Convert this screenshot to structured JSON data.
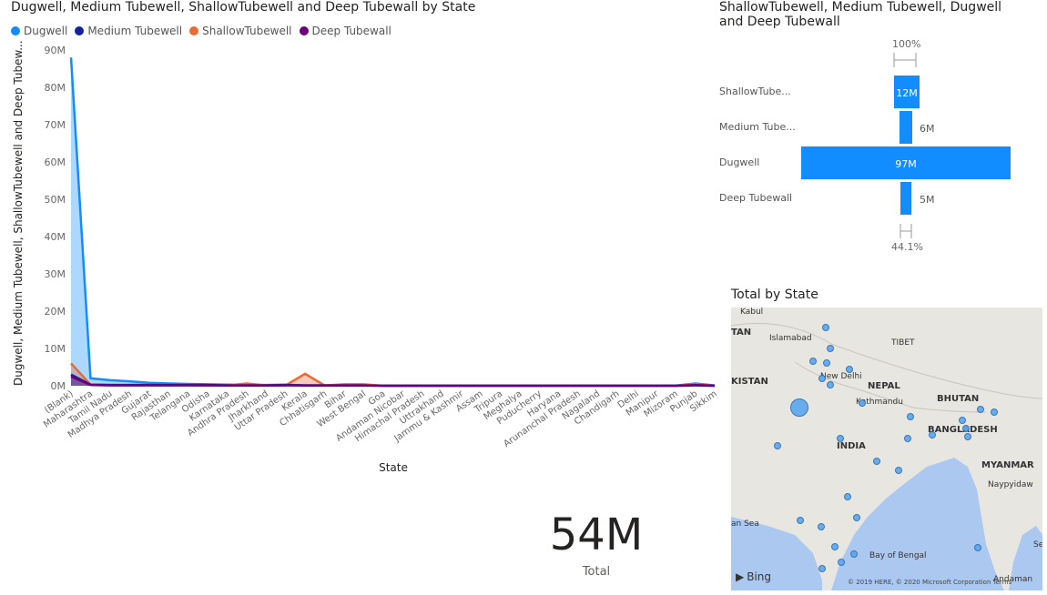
{
  "area_chart": {
    "title": "Dugwell, Medium Tubewell, ShallowTubewell and Deep Tubewall by State",
    "legend": [
      "Dugwell",
      "Medium Tubewell",
      "ShallowTubewell",
      "Deep Tubewall"
    ],
    "colors": {
      "Dugwell": "#118dff",
      "Medium Tubewell": "#12239e",
      "ShallowTubewell": "#e66c37",
      "Deep Tubewall": "#6b007b"
    },
    "ylabel": "Dugwell, Medium Tubewell, ShallowTubewell and Deep Tubew...",
    "xlabel": "State"
  },
  "chart_data": [
    {
      "type": "area",
      "title": "Dugwell, Medium Tubewell, ShallowTubewell and Deep Tubewall by State",
      "xlabel": "State",
      "ylabel": "Dugwell, Medium Tubewell, ShallowTubewell and Deep Tubew...",
      "ylim": [
        0,
        90
      ],
      "yticks": [
        "0M",
        "10M",
        "20M",
        "30M",
        "40M",
        "50M",
        "60M",
        "70M",
        "80M",
        "90M"
      ],
      "categories": [
        "(Blank)",
        "Maharashtra",
        "Tamil Nadu",
        "Madhya Pradesh",
        "Gujarat",
        "Rajasthan",
        "Telangana",
        "Odisha",
        "Karnataka",
        "Andhra Pradesh",
        "Jharkhand",
        "Uttar Pradesh",
        "Kerala",
        "Chhatisgarh",
        "Bihar",
        "West Bengal",
        "Goa",
        "Andaman Nicobar",
        "Himachal Pradesh",
        "Uttrakhand",
        "Jammu & Kashmir",
        "Assam",
        "Tripura",
        "Meghalya",
        "Puducherry",
        "Haryana",
        "Arunanchal Pradesh",
        "Nagaland",
        "Chandigarh",
        "Delhi",
        "Manipur",
        "Mizoram",
        "Punjab",
        "Sikkim"
      ],
      "series": [
        {
          "name": "Dugwell",
          "values": [
            88,
            2,
            1.5,
            1.2,
            0.8,
            0.6,
            0.5,
            0.4,
            0.3,
            0.3,
            0.2,
            0.3,
            0.1,
            0.1,
            0.1,
            0.1,
            0.05,
            0.05,
            0.05,
            0.05,
            0.05,
            0.05,
            0.05,
            0.05,
            0.05,
            0.05,
            0.05,
            0.05,
            0.05,
            0.05,
            0.05,
            0.05,
            0.6,
            0.1
          ]
        },
        {
          "name": "Medium Tubewell",
          "values": [
            3,
            0.3,
            0.2,
            0.2,
            0.2,
            0.2,
            0.2,
            0.2,
            0.1,
            0.1,
            0.1,
            0.2,
            0.1,
            0.1,
            0.1,
            0.1,
            0,
            0,
            0,
            0,
            0,
            0,
            0,
            0,
            0,
            0,
            0,
            0,
            0,
            0,
            0,
            0,
            0.1,
            0
          ]
        },
        {
          "name": "ShallowTubewell",
          "values": [
            6,
            0.3,
            0.2,
            0.2,
            0.2,
            0.2,
            0.2,
            0.1,
            0.1,
            0.6,
            0.1,
            0.1,
            3.2,
            0.1,
            0.4,
            0.4,
            0,
            0,
            0,
            0,
            0,
            0,
            0,
            0,
            0,
            0,
            0,
            0,
            0,
            0,
            0,
            0,
            0.4,
            0
          ]
        },
        {
          "name": "Deep Tubewall",
          "values": [
            2.5,
            0.2,
            0.1,
            0.1,
            0.1,
            0.1,
            0.1,
            0.1,
            0.1,
            0.1,
            0.1,
            0.1,
            0.1,
            0.1,
            0.1,
            0.1,
            0,
            0,
            0,
            0,
            0,
            0,
            0,
            0,
            0,
            0,
            0,
            0,
            0,
            0,
            0,
            0,
            0.2,
            0
          ]
        }
      ]
    },
    {
      "type": "bar",
      "title": "ShallowTubewell, Medium Tubewell, Dugwell and Deep Tubewall",
      "categories": [
        "ShallowTube...",
        "Medium Tube...",
        "Dugwell",
        "Deep Tubewall"
      ],
      "values": [
        12,
        6,
        97,
        5
      ],
      "value_labels": [
        "12M",
        "6M",
        "97M",
        "5M"
      ],
      "top_percent": "100%",
      "bottom_percent": "44.1%"
    }
  ],
  "funnel": {
    "title": "ShallowTubewell, Medium Tubewell, Dugwell and Deep Tubewall",
    "top_pct": "100%",
    "bottom_pct": "44.1%",
    "rows": [
      {
        "label": "ShallowTube...",
        "value": "12M"
      },
      {
        "label": "Medium Tube...",
        "value": "6M"
      },
      {
        "label": "Dugwell",
        "value": "97M"
      },
      {
        "label": "Deep Tubewall",
        "value": "5M"
      }
    ]
  },
  "kpi": {
    "value": "54M",
    "label": "Total"
  },
  "map": {
    "title": "Total by State",
    "labels": [
      "Kabul",
      "Islamabad",
      "TIBET",
      "KISTAN",
      "New Delhi",
      "NEPAL",
      "Kathmandu",
      "BHUTAN",
      "BANGLADESH",
      "INDIA",
      "MYANMAR",
      "Naypyidaw",
      "Bay of Bengal",
      "an Sea",
      "TAN",
      "Andaman",
      "Sea"
    ],
    "bing": "Bing",
    "copyright": "© 2019 HERE, © 2020 Microsoft Corporation Terms"
  }
}
